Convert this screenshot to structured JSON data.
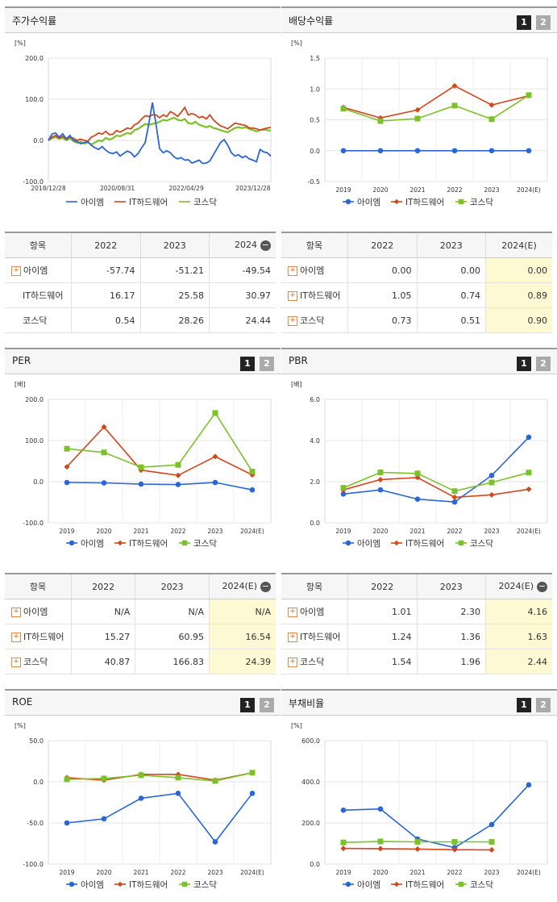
{
  "series_names": [
    "아이엠",
    "IT하드웨어",
    "코스닥"
  ],
  "colors": {
    "s0": "#2a66d6",
    "s1": "#d4461c",
    "s2": "#7cc12a"
  },
  "panels": {
    "stock": {
      "title": "주가수익률",
      "unit": "[%]"
    },
    "dividend": {
      "title": "배당수익률",
      "unit": "[%]"
    },
    "per": {
      "title": "PER",
      "unit": "[배]"
    },
    "pbr": {
      "title": "PBR",
      "unit": "[배]"
    },
    "roe": {
      "title": "ROE",
      "unit": "[%]"
    },
    "debt": {
      "title": "부채비율",
      "unit": "[%]"
    }
  },
  "page_buttons": [
    "1",
    "2"
  ],
  "tables": {
    "stock": {
      "header": [
        "항목",
        "2022",
        "2023",
        "2024"
      ],
      "rows": [
        {
          "name": "아이엠",
          "expand": true,
          "values": [
            "-57.74",
            "-51.21",
            "-49.54"
          ]
        },
        {
          "name": "IT하드웨어",
          "expand": false,
          "values": [
            "16.17",
            "25.58",
            "30.97"
          ]
        },
        {
          "name": "코스닥",
          "expand": false,
          "values": [
            "0.54",
            "28.26",
            "24.44"
          ]
        }
      ]
    },
    "dividend": {
      "header": [
        "항목",
        "2022",
        "2023",
        "2024(E)"
      ],
      "rows": [
        {
          "name": "아이엠",
          "expand": true,
          "values": [
            "0.00",
            "0.00",
            "0.00"
          ]
        },
        {
          "name": "IT하드웨어",
          "expand": true,
          "values": [
            "1.05",
            "0.74",
            "0.89"
          ]
        },
        {
          "name": "코스닥",
          "expand": true,
          "values": [
            "0.73",
            "0.51",
            "0.90"
          ]
        }
      ]
    },
    "per": {
      "header": [
        "항목",
        "2022",
        "2023",
        "2024(E)"
      ],
      "rows": [
        {
          "name": "아이엠",
          "expand": true,
          "values": [
            "N/A",
            "N/A",
            "N/A"
          ]
        },
        {
          "name": "IT하드웨어",
          "expand": true,
          "values": [
            "15.27",
            "60.95",
            "16.54"
          ]
        },
        {
          "name": "코스닥",
          "expand": true,
          "values": [
            "40.87",
            "166.83",
            "24.39"
          ]
        }
      ]
    },
    "pbr": {
      "header": [
        "항목",
        "2022",
        "2023",
        "2024(E)"
      ],
      "rows": [
        {
          "name": "아이엠",
          "expand": true,
          "values": [
            "1.01",
            "2.30",
            "4.16"
          ]
        },
        {
          "name": "IT하드웨어",
          "expand": true,
          "values": [
            "1.24",
            "1.36",
            "1.63"
          ]
        },
        {
          "name": "코스닥",
          "expand": true,
          "values": [
            "1.54",
            "1.96",
            "2.44"
          ]
        }
      ]
    }
  },
  "chart_data": [
    {
      "id": "stock",
      "type": "line",
      "x_ticks": [
        "2018/12/28",
        "2020/08/31",
        "2022/04/29",
        "2023/12/28"
      ],
      "ylim": [
        -100,
        200
      ],
      "yticks": [
        -100,
        0,
        100,
        200
      ],
      "ytick_labels": [
        "-100.0",
        "0.0",
        "100.0",
        "200.0"
      ],
      "series": [
        {
          "name": "아이엠",
          "values": [
            0,
            15,
            18,
            8,
            16,
            4,
            12,
            0,
            -3,
            -8,
            -5,
            -3,
            -12,
            -18,
            -22,
            -15,
            -24,
            -30,
            -32,
            -28,
            -38,
            -32,
            -26,
            -30,
            -40,
            -32,
            -18,
            -5,
            40,
            92,
            40,
            -20,
            -30,
            -25,
            -30,
            -40,
            -45,
            -42,
            -48,
            -47,
            -55,
            -52,
            -48,
            -56,
            -55,
            -50,
            -35,
            -20,
            -5,
            2,
            -12,
            -30,
            -38,
            -35,
            -42,
            -38,
            -45,
            -48,
            -52,
            -22,
            -28,
            -30,
            -38
          ]
        },
        {
          "name": "IT하드웨어",
          "values": [
            0,
            8,
            12,
            5,
            10,
            3,
            8,
            5,
            0,
            3,
            0,
            -2,
            8,
            12,
            18,
            15,
            22,
            14,
            15,
            24,
            20,
            25,
            30,
            28,
            38,
            42,
            52,
            60,
            58,
            62,
            62,
            55,
            62,
            58,
            70,
            65,
            58,
            68,
            80,
            62,
            65,
            62,
            55,
            58,
            52,
            62,
            50,
            42,
            35,
            32,
            28,
            35,
            42,
            40,
            38,
            36,
            30,
            30,
            28,
            25,
            28,
            30,
            32
          ]
        },
        {
          "name": "코스닥",
          "values": [
            0,
            5,
            8,
            4,
            6,
            0,
            5,
            -2,
            -6,
            -3,
            -8,
            -5,
            -10,
            -5,
            0,
            -2,
            6,
            2,
            5,
            12,
            10,
            14,
            18,
            16,
            25,
            28,
            34,
            40,
            38,
            40,
            42,
            45,
            50,
            48,
            52,
            55,
            50,
            48,
            52,
            42,
            40,
            45,
            38,
            35,
            32,
            35,
            30,
            28,
            25,
            22,
            20,
            25,
            30,
            32,
            30,
            32,
            28,
            25,
            22,
            25,
            26,
            25,
            24
          ]
        }
      ]
    },
    {
      "id": "dividend",
      "type": "line",
      "categories": [
        "2019",
        "2020",
        "2021",
        "2022",
        "2023",
        "2024(E)"
      ],
      "ylim": [
        -0.5,
        1.5
      ],
      "yticks": [
        -0.5,
        0,
        0.5,
        1.0,
        1.5
      ],
      "ytick_labels": [
        "-0.5",
        "0.0",
        "0.5",
        "1.0",
        "1.5"
      ],
      "series": [
        {
          "name": "아이엠",
          "values": [
            0,
            0,
            0,
            0,
            0,
            0
          ]
        },
        {
          "name": "IT하드웨어",
          "values": [
            0.7,
            0.53,
            0.66,
            1.05,
            0.74,
            0.89
          ]
        },
        {
          "name": "코스닥",
          "values": [
            0.68,
            0.48,
            0.52,
            0.73,
            0.51,
            0.9
          ]
        }
      ]
    },
    {
      "id": "per",
      "type": "line",
      "categories": [
        "2019",
        "2020",
        "2021",
        "2022",
        "2023",
        "2024(E)"
      ],
      "ylim": [
        -100,
        200
      ],
      "yticks": [
        -100,
        0,
        100,
        200
      ],
      "ytick_labels": [
        "-100.0",
        "0.0",
        "100.0",
        "200.0"
      ],
      "series": [
        {
          "name": "아이엠",
          "values": [
            -2,
            -3,
            -6,
            -7,
            -2,
            -20
          ]
        },
        {
          "name": "IT하드웨어",
          "values": [
            36,
            133,
            28,
            15.27,
            60.95,
            16.54
          ]
        },
        {
          "name": "코스닥",
          "values": [
            80,
            71,
            35,
            40.87,
            166.83,
            24.39
          ]
        }
      ]
    },
    {
      "id": "pbr",
      "type": "line",
      "categories": [
        "2019",
        "2020",
        "2021",
        "2022",
        "2023",
        "2024(E)"
      ],
      "ylim": [
        0,
        6
      ],
      "yticks": [
        0,
        2,
        4,
        6
      ],
      "ytick_labels": [
        "0.0",
        "2.0",
        "4.0",
        "6.0"
      ],
      "series": [
        {
          "name": "아이엠",
          "values": [
            1.4,
            1.6,
            1.15,
            1.01,
            2.3,
            4.16
          ]
        },
        {
          "name": "IT하드웨어",
          "values": [
            1.6,
            2.1,
            2.2,
            1.24,
            1.36,
            1.63
          ]
        },
        {
          "name": "코스닥",
          "values": [
            1.7,
            2.45,
            2.4,
            1.54,
            1.96,
            2.44
          ]
        }
      ]
    },
    {
      "id": "roe",
      "type": "line",
      "categories": [
        "2019",
        "2020",
        "2021",
        "2022",
        "2023",
        "2024(E)"
      ],
      "ylim": [
        -100,
        50
      ],
      "yticks": [
        -100,
        -50,
        0,
        50
      ],
      "ytick_labels": [
        "-100.0",
        "-50.0",
        "0.0",
        "50.0"
      ],
      "series": [
        {
          "name": "아이엠",
          "values": [
            -50,
            -45,
            -20,
            -14,
            -73,
            -14
          ]
        },
        {
          "name": "IT하드웨어",
          "values": [
            5,
            2,
            9,
            9,
            2,
            11
          ]
        },
        {
          "name": "코스닥",
          "values": [
            3,
            4,
            8,
            5,
            1,
            11
          ]
        }
      ]
    },
    {
      "id": "debt",
      "type": "line",
      "categories": [
        "2019",
        "2020",
        "2021",
        "2022",
        "2023",
        "2024(E)"
      ],
      "ylim": [
        0,
        600
      ],
      "yticks": [
        0,
        200,
        400,
        600
      ],
      "ytick_labels": [
        "0.0",
        "200.0",
        "400.0",
        "600.0"
      ],
      "series": [
        {
          "name": "아이엠",
          "values": [
            262,
            268,
            122,
            80,
            192,
            385
          ]
        },
        {
          "name": "IT하드웨어",
          "values": [
            76,
            75,
            73,
            70,
            69,
            null
          ]
        },
        {
          "name": "코스닥",
          "values": [
            105,
            110,
            108,
            108,
            108,
            null
          ]
        }
      ]
    }
  ]
}
